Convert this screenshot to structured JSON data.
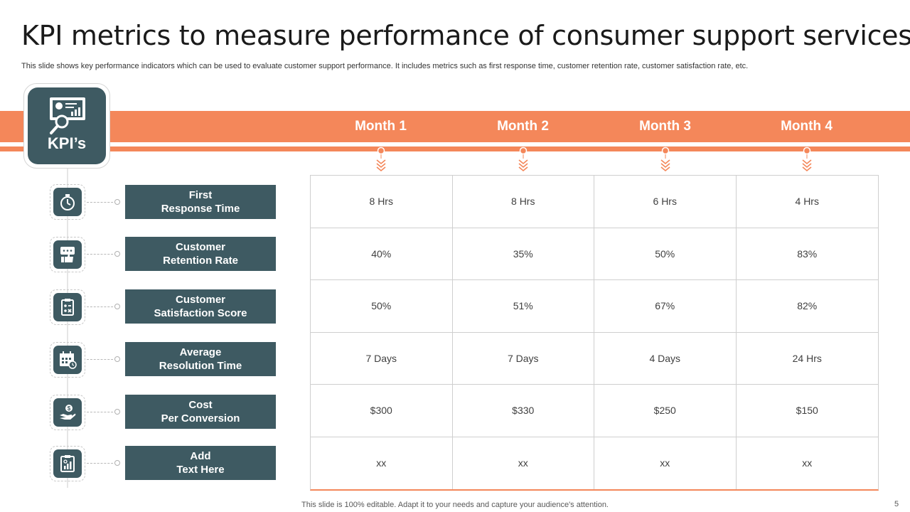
{
  "slide": {
    "title": "KPI metrics to measure performance of consumer support services",
    "subtitle": "This slide shows key performance indicators which can be used to evaluate customer support performance. It includes metrics such as first response time, customer retention rate, customer satisfaction rate, etc.",
    "footer": "This slide is 100% editable. Adapt it to your needs and capture your audience's attention.",
    "page_number": "5"
  },
  "colors": {
    "accent": "#f4875a",
    "tile": "#3e5a62",
    "grid": "#cfcfcf"
  },
  "kpi_header": {
    "label": "KPI’s",
    "icon": "presentation-search-icon"
  },
  "months": [
    "Month 1",
    "Month 2",
    "Month 3",
    "Month 4"
  ],
  "metrics": [
    {
      "line1": "First",
      "line2": "Response Time",
      "icon": "stopwatch-icon",
      "values": [
        "8 Hrs",
        "8 Hrs",
        "6 Hrs",
        "4 Hrs"
      ]
    },
    {
      "line1": "Customer",
      "line2": "Retention Rate",
      "icon": "thumbs-up-chat-icon",
      "values": [
        "40%",
        "35%",
        "50%",
        "83%"
      ]
    },
    {
      "line1": "Customer",
      "line2": "Satisfaction Score",
      "icon": "clipboard-checklist-icon",
      "values": [
        "50%",
        "51%",
        "67%",
        "82%"
      ]
    },
    {
      "line1": "Average",
      "line2": "Resolution Time",
      "icon": "calendar-clock-icon",
      "values": [
        "7 Days",
        "7 Days",
        "4 Days",
        "24 Hrs"
      ]
    },
    {
      "line1": "Cost",
      "line2": "Per Conversion",
      "icon": "hand-coin-icon",
      "values": [
        "$300",
        "$330",
        "$250",
        "$150"
      ]
    },
    {
      "line1": "Add",
      "line2": "Text Here",
      "icon": "clipboard-chart-icon",
      "values": [
        "xx",
        "xx",
        "xx",
        "xx"
      ]
    }
  ]
}
